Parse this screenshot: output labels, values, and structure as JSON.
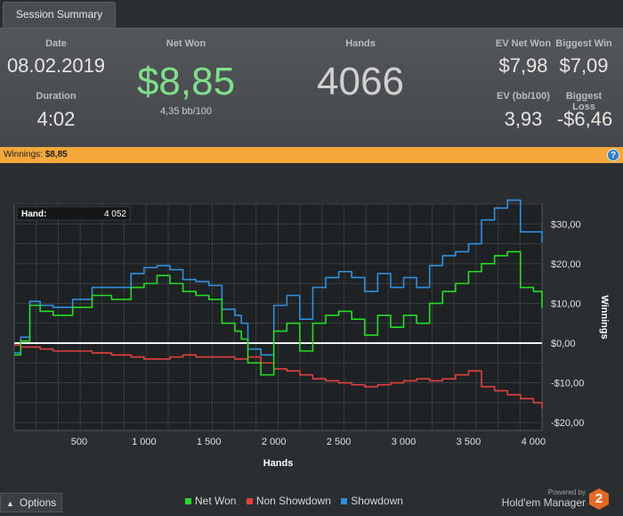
{
  "tab": {
    "label": "Session Summary"
  },
  "summary": {
    "date_label": "Date",
    "date": "08.02.2019",
    "duration_label": "Duration",
    "duration": "4:02",
    "net_won_label": "Net Won",
    "net_won": "$8,85",
    "bb100": "4,35 bb/100",
    "hands_label": "Hands",
    "hands": "4066",
    "ev_net_won_label": "EV Net Won",
    "ev_net_won": "$7,98",
    "biggest_win_label": "Biggest Win",
    "biggest_win": "$7,09",
    "ev_bb_label": "EV (bb/100)",
    "ev_bb": "3,93",
    "biggest_loss_label": "Biggest Loss",
    "biggest_loss": "-$6,46"
  },
  "winnings_bar": {
    "label": "Winnings:",
    "value": "$8,85",
    "help_icon": "help-icon"
  },
  "tooltip": {
    "label": "Hand:",
    "value": "4 052"
  },
  "legend": {
    "net_won": "Net Won",
    "non_showdown": "Non Showdown",
    "showdown": "Showdown"
  },
  "bottom": {
    "options_label": "Options",
    "powered_by": "Powered by",
    "brand": "Hold'em Manager",
    "logo_text": "2"
  },
  "colors": {
    "net_won": "#22dd22",
    "non_showdown": "#e04040",
    "showdown": "#2f8fe0",
    "accent": "#f4a93a"
  },
  "chart_data": {
    "type": "line",
    "xlabel": "Hands",
    "ylabel": "Winnings",
    "xlim": [
      0,
      4066
    ],
    "ylim": [
      -22,
      35
    ],
    "x_ticks": [
      500,
      1000,
      1500,
      2000,
      2500,
      3000,
      3500,
      4000
    ],
    "x_tick_labels": [
      "500",
      "1 000",
      "1 500",
      "2 000",
      "2 500",
      "3 000",
      "3 500",
      "4 000"
    ],
    "y_ticks": [
      30,
      20,
      10,
      0,
      -10,
      -20
    ],
    "y_tick_labels": [
      "$30,00",
      "$20,00",
      "$10,00",
      "$0,00",
      "-$10,00",
      "-$20,00"
    ],
    "x": [
      0,
      50,
      120,
      200,
      300,
      450,
      600,
      750,
      900,
      1000,
      1100,
      1200,
      1300,
      1400,
      1500,
      1600,
      1700,
      1750,
      1800,
      1900,
      2000,
      2100,
      2200,
      2300,
      2400,
      2500,
      2600,
      2700,
      2800,
      2900,
      3000,
      3100,
      3200,
      3300,
      3400,
      3500,
      3600,
      3700,
      3800,
      3900,
      4000,
      4066
    ],
    "series": [
      {
        "name": "Net Won",
        "values": [
          -3,
          0.5,
          9.5,
          8,
          7,
          9,
          12,
          11,
          14,
          15,
          17,
          15,
          13,
          12,
          11,
          5,
          3,
          1,
          -5,
          -8,
          3,
          5,
          -2,
          5,
          7,
          8,
          6,
          2,
          7,
          4,
          7,
          5,
          10,
          13,
          15,
          18,
          20,
          22,
          23,
          14,
          13,
          8.85
        ]
      },
      {
        "name": "Non Showdown",
        "values": [
          -0.5,
          -1,
          -1,
          -1.5,
          -2,
          -2,
          -2.5,
          -3,
          -3.5,
          -4,
          -4,
          -3.5,
          -3,
          -3.5,
          -3.5,
          -3.5,
          -4,
          -4,
          -3.5,
          -5,
          -6.5,
          -7,
          -8,
          -9,
          -9.5,
          -10,
          -10.5,
          -11,
          -10.5,
          -10,
          -9.5,
          -9,
          -9.5,
          -9,
          -8,
          -7,
          -11,
          -12,
          -13,
          -14,
          -15,
          -16.5
        ]
      },
      {
        "name": "Showdown",
        "values": [
          -2.5,
          1.5,
          10.5,
          9.5,
          9,
          11,
          14,
          14,
          17.5,
          19,
          19.5,
          18.5,
          16,
          15.5,
          14.5,
          8.5,
          7,
          5,
          -1.5,
          -3,
          9.5,
          12,
          6,
          14,
          16.5,
          18,
          16.5,
          13,
          17.5,
          14,
          16.5,
          14,
          19.5,
          22,
          23,
          25,
          31,
          34,
          36,
          28,
          28,
          25.35
        ]
      }
    ]
  }
}
